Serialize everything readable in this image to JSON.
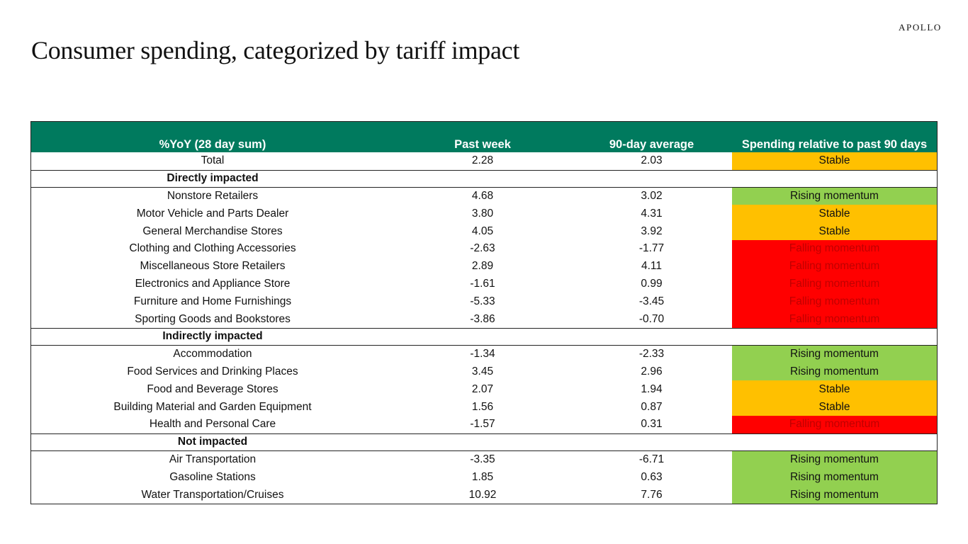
{
  "brand": "APOLLO",
  "title": "Consumer spending, categorized by tariff impact",
  "table": {
    "headers": [
      "%YoY (28 day sum)",
      "Past week",
      "90-day average",
      "Spending relative to past 90 days"
    ],
    "total": {
      "label": "Total",
      "past_week": "2.28",
      "avg90": "2.03",
      "status": "Stable",
      "status_class": "stable"
    },
    "sections": [
      {
        "title": "Directly impacted",
        "rows": [
          {
            "label": "Nonstore Retailers",
            "past_week": "4.68",
            "avg90": "3.02",
            "status": "Rising momentum",
            "status_class": "rising"
          },
          {
            "label": "Motor Vehicle and Parts Dealer",
            "past_week": "3.80",
            "avg90": "4.31",
            "status": "Stable",
            "status_class": "stable"
          },
          {
            "label": "General Merchandise Stores",
            "past_week": "4.05",
            "avg90": "3.92",
            "status": "Stable",
            "status_class": "stable"
          },
          {
            "label": "Clothing and Clothing Accessories",
            "past_week": "-2.63",
            "avg90": "-1.77",
            "status": "Falling momentum",
            "status_class": "falling"
          },
          {
            "label": "Miscellaneous Store Retailers",
            "past_week": "2.89",
            "avg90": "4.11",
            "status": "Falling momentum",
            "status_class": "falling"
          },
          {
            "label": "Electronics and Appliance Store",
            "past_week": "-1.61",
            "avg90": "0.99",
            "status": "Falling momentum",
            "status_class": "falling"
          },
          {
            "label": "Furniture and Home Furnishings",
            "past_week": "-5.33",
            "avg90": "-3.45",
            "status": "Falling momentum",
            "status_class": "falling"
          },
          {
            "label": "Sporting Goods and Bookstores",
            "past_week": "-3.86",
            "avg90": "-0.70",
            "status": "Falling momentum",
            "status_class": "falling"
          }
        ]
      },
      {
        "title": "Indirectly impacted",
        "rows": [
          {
            "label": "Accommodation",
            "past_week": "-1.34",
            "avg90": "-2.33",
            "status": "Rising momentum",
            "status_class": "rising"
          },
          {
            "label": "Food Services and Drinking Places",
            "past_week": "3.45",
            "avg90": "2.96",
            "status": "Rising momentum",
            "status_class": "rising"
          },
          {
            "label": "Food and Beverage Stores",
            "past_week": "2.07",
            "avg90": "1.94",
            "status": "Stable",
            "status_class": "stable"
          },
          {
            "label": "Building Material and Garden Equipment",
            "past_week": "1.56",
            "avg90": "0.87",
            "status": "Stable",
            "status_class": "stable"
          },
          {
            "label": "Health and Personal Care",
            "past_week": "-1.57",
            "avg90": "0.31",
            "status": "Falling momentum",
            "status_class": "falling"
          }
        ]
      },
      {
        "title": "Not impacted",
        "rows": [
          {
            "label": "Air Transportation",
            "past_week": "-3.35",
            "avg90": "-6.71",
            "status": "Rising momentum",
            "status_class": "rising"
          },
          {
            "label": "Gasoline Stations",
            "past_week": "1.85",
            "avg90": "0.63",
            "status": "Rising momentum",
            "status_class": "rising"
          },
          {
            "label": "Water Transportation/Cruises",
            "past_week": "10.92",
            "avg90": "7.76",
            "status": "Rising momentum",
            "status_class": "rising"
          }
        ]
      }
    ]
  },
  "colors": {
    "header_bg": "#007a5e",
    "rising": "#92d050",
    "stable": "#ffc000",
    "falling": "#ff0000",
    "falling_text": "#c00000"
  }
}
